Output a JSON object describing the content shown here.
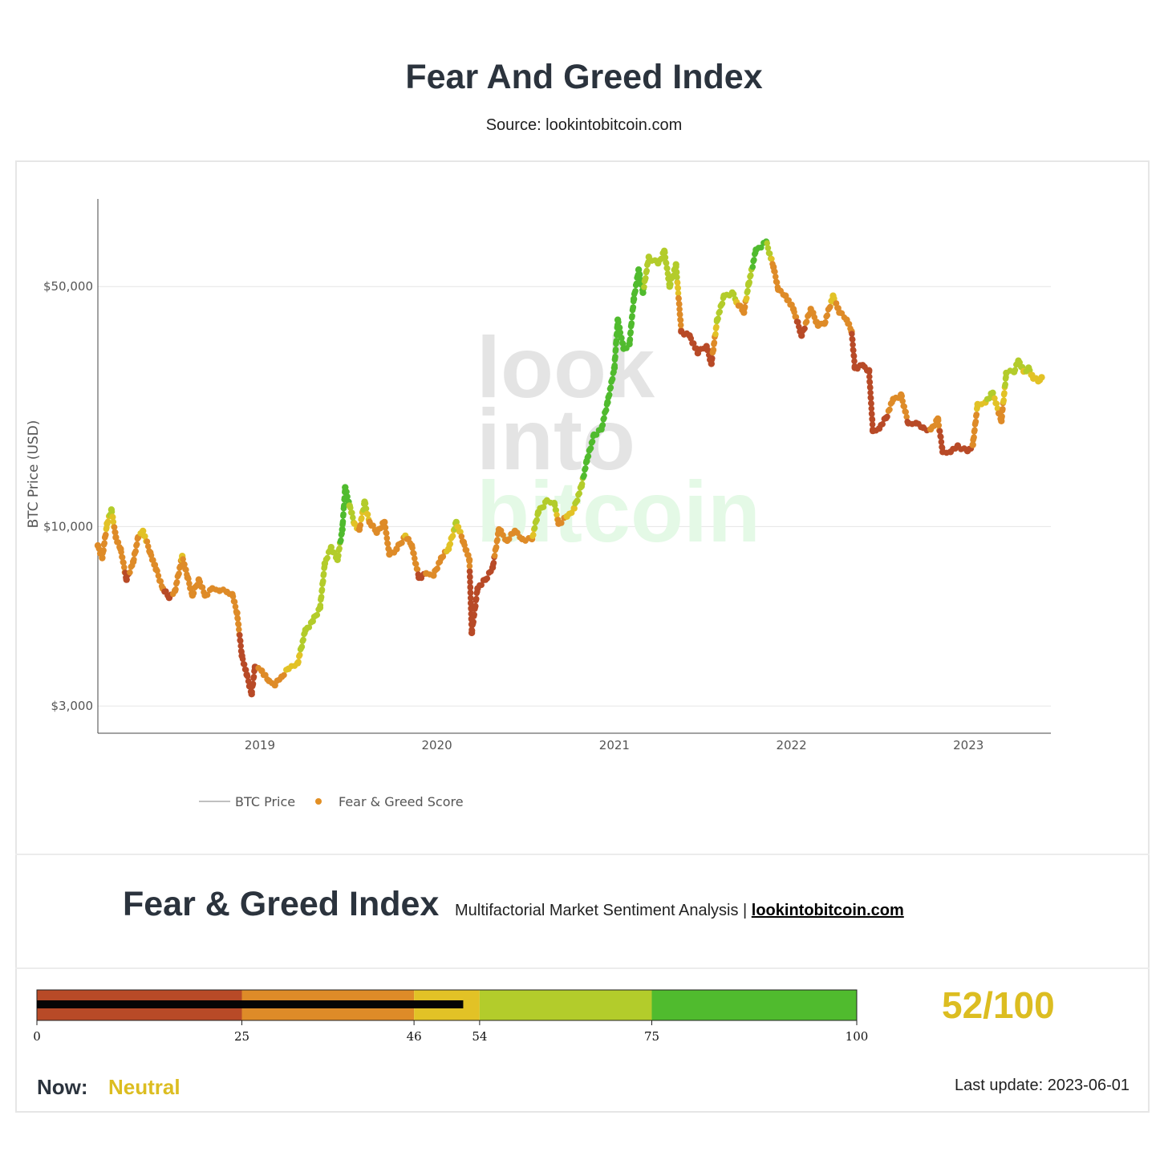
{
  "header": {
    "title": "Fear And Greed Index",
    "subtitle": "Source: lookintobitcoin.com"
  },
  "chart_data": {
    "type": "scatter",
    "ylabel": "BTC Price (USD)",
    "yscale": "log",
    "yticks": [
      {
        "value": 3000,
        "label": "$3,000"
      },
      {
        "value": 10000,
        "label": "$10,000"
      },
      {
        "value": 50000,
        "label": "$50,000"
      }
    ],
    "xticks": [
      "2019",
      "2020",
      "2021",
      "2022",
      "2023"
    ],
    "xlim": [
      "2018-02-01",
      "2023-06-20"
    ],
    "ylim": [
      2500,
      90000
    ],
    "grid": true,
    "legend_position": "bottom-left",
    "watermark": [
      "look",
      "into",
      "bitcoin"
    ],
    "series": [
      {
        "name": "BTC Price",
        "kind": "line",
        "color": "#9a9a9a"
      },
      {
        "name": "Fear & Greed Score",
        "kind": "marker",
        "color": "#e28f24"
      }
    ],
    "points": [
      [
        "2018-02-01",
        8800,
        38
      ],
      [
        "2018-02-10",
        8100,
        30
      ],
      [
        "2018-02-20",
        10200,
        50
      ],
      [
        "2018-03-01",
        11200,
        58
      ],
      [
        "2018-03-10",
        9300,
        40
      ],
      [
        "2018-03-20",
        8600,
        34
      ],
      [
        "2018-04-01",
        7000,
        22
      ],
      [
        "2018-04-15",
        7900,
        30
      ],
      [
        "2018-04-25",
        9300,
        46
      ],
      [
        "2018-05-05",
        9700,
        52
      ],
      [
        "2018-05-20",
        8400,
        40
      ],
      [
        "2018-06-01",
        7500,
        32
      ],
      [
        "2018-06-15",
        6600,
        26
      ],
      [
        "2018-06-28",
        6200,
        22
      ],
      [
        "2018-07-10",
        6500,
        30
      ],
      [
        "2018-07-25",
        8200,
        48
      ],
      [
        "2018-08-05",
        7100,
        34
      ],
      [
        "2018-08-15",
        6300,
        26
      ],
      [
        "2018-08-28",
        7000,
        34
      ],
      [
        "2018-09-10",
        6300,
        30
      ],
      [
        "2018-09-25",
        6600,
        32
      ],
      [
        "2018-10-10",
        6500,
        30
      ],
      [
        "2018-10-25",
        6450,
        32
      ],
      [
        "2018-11-05",
        6350,
        36
      ],
      [
        "2018-11-15",
        5600,
        30
      ],
      [
        "2018-11-25",
        4200,
        20
      ],
      [
        "2018-12-05",
        3700,
        14
      ],
      [
        "2018-12-15",
        3250,
        12
      ],
      [
        "2018-12-22",
        3900,
        24
      ],
      [
        "2019-01-05",
        3800,
        28
      ],
      [
        "2019-01-20",
        3550,
        32
      ],
      [
        "2019-02-01",
        3450,
        34
      ],
      [
        "2019-02-15",
        3650,
        40
      ],
      [
        "2019-03-01",
        3850,
        50
      ],
      [
        "2019-03-20",
        4000,
        52
      ],
      [
        "2019-04-05",
        5000,
        58
      ],
      [
        "2019-04-20",
        5300,
        60
      ],
      [
        "2019-05-05",
        5800,
        66
      ],
      [
        "2019-05-15",
        7800,
        74
      ],
      [
        "2019-05-28",
        8700,
        70
      ],
      [
        "2019-06-10",
        8000,
        68
      ],
      [
        "2019-06-20",
        9800,
        80
      ],
      [
        "2019-06-26",
        13000,
        92
      ],
      [
        "2019-07-05",
        11500,
        72
      ],
      [
        "2019-07-15",
        10200,
        54
      ],
      [
        "2019-07-25",
        9800,
        42
      ],
      [
        "2019-08-05",
        11800,
        60
      ],
      [
        "2019-08-15",
        10300,
        44
      ],
      [
        "2019-08-30",
        9600,
        42
      ],
      [
        "2019-09-15",
        10300,
        42
      ],
      [
        "2019-09-25",
        8300,
        28
      ],
      [
        "2019-10-10",
        8600,
        34
      ],
      [
        "2019-10-28",
        9400,
        48
      ],
      [
        "2019-11-10",
        8800,
        38
      ],
      [
        "2019-11-25",
        7100,
        22
      ],
      [
        "2019-12-10",
        7300,
        26
      ],
      [
        "2019-12-25",
        7200,
        28
      ],
      [
        "2020-01-10",
        8100,
        40
      ],
      [
        "2020-01-25",
        8600,
        50
      ],
      [
        "2020-02-10",
        10300,
        56
      ],
      [
        "2020-02-25",
        9000,
        40
      ],
      [
        "2020-03-08",
        8000,
        28
      ],
      [
        "2020-03-13",
        4900,
        10
      ],
      [
        "2020-03-25",
        6600,
        14
      ],
      [
        "2020-04-10",
        7000,
        16
      ],
      [
        "2020-04-25",
        7600,
        20
      ],
      [
        "2020-05-08",
        9800,
        40
      ],
      [
        "2020-05-25",
        9100,
        44
      ],
      [
        "2020-06-10",
        9700,
        44
      ],
      [
        "2020-06-25",
        9200,
        42
      ],
      [
        "2020-07-15",
        9200,
        44
      ],
      [
        "2020-07-28",
        11000,
        68
      ],
      [
        "2020-08-15",
        11900,
        74
      ],
      [
        "2020-08-30",
        11700,
        70
      ],
      [
        "2020-09-08",
        10200,
        42
      ],
      [
        "2020-09-25",
        10700,
        48
      ],
      [
        "2020-10-10",
        11300,
        54
      ],
      [
        "2020-10-25",
        13100,
        70
      ],
      [
        "2020-11-05",
        15500,
        86
      ],
      [
        "2020-11-20",
        18500,
        90
      ],
      [
        "2020-12-05",
        19200,
        92
      ],
      [
        "2020-12-18",
        23000,
        94
      ],
      [
        "2021-01-01",
        29000,
        94
      ],
      [
        "2021-01-08",
        40000,
        94
      ],
      [
        "2021-01-20",
        33000,
        80
      ],
      [
        "2021-02-01",
        34000,
        82
      ],
      [
        "2021-02-10",
        46000,
        90
      ],
      [
        "2021-02-20",
        56000,
        86
      ],
      [
        "2021-03-01",
        48000,
        76
      ],
      [
        "2021-03-13",
        61000,
        70
      ],
      [
        "2021-04-01",
        58500,
        72
      ],
      [
        "2021-04-14",
        63500,
        74
      ],
      [
        "2021-04-25",
        50000,
        60
      ],
      [
        "2021-05-08",
        58000,
        66
      ],
      [
        "2021-05-19",
        37000,
        24
      ],
      [
        "2021-06-05",
        36000,
        22
      ],
      [
        "2021-06-22",
        32000,
        18
      ],
      [
        "2021-07-10",
        33500,
        24
      ],
      [
        "2021-07-20",
        29800,
        16
      ],
      [
        "2021-08-01",
        40000,
        60
      ],
      [
        "2021-08-15",
        47000,
        72
      ],
      [
        "2021-09-01",
        48000,
        74
      ],
      [
        "2021-09-10",
        45000,
        50
      ],
      [
        "2021-09-25",
        42000,
        32
      ],
      [
        "2021-10-05",
        51000,
        70
      ],
      [
        "2021-10-20",
        64000,
        80
      ],
      [
        "2021-11-10",
        67500,
        78
      ],
      [
        "2021-11-25",
        57000,
        40
      ],
      [
        "2021-12-05",
        49000,
        26
      ],
      [
        "2021-12-20",
        47000,
        28
      ],
      [
        "2022-01-05",
        43000,
        30
      ],
      [
        "2022-01-22",
        36000,
        18
      ],
      [
        "2022-02-10",
        43000,
        36
      ],
      [
        "2022-02-25",
        38500,
        28
      ],
      [
        "2022-03-10",
        39000,
        30
      ],
      [
        "2022-03-28",
        47000,
        52
      ],
      [
        "2022-04-10",
        42000,
        40
      ],
      [
        "2022-04-25",
        40000,
        36
      ],
      [
        "2022-05-05",
        37000,
        26
      ],
      [
        "2022-05-12",
        29000,
        14
      ],
      [
        "2022-05-28",
        29500,
        12
      ],
      [
        "2022-06-10",
        28500,
        14
      ],
      [
        "2022-06-18",
        19000,
        8
      ],
      [
        "2022-07-01",
        19300,
        12
      ],
      [
        "2022-07-15",
        20700,
        22
      ],
      [
        "2022-07-30",
        23500,
        34
      ],
      [
        "2022-08-15",
        24200,
        36
      ],
      [
        "2022-08-30",
        20000,
        22
      ],
      [
        "2022-09-15",
        20000,
        24
      ],
      [
        "2022-09-30",
        19400,
        24
      ],
      [
        "2022-10-15",
        19200,
        26
      ],
      [
        "2022-10-30",
        20600,
        30
      ],
      [
        "2022-11-09",
        16500,
        14
      ],
      [
        "2022-11-25",
        16500,
        16
      ],
      [
        "2022-12-10",
        17200,
        22
      ],
      [
        "2022-12-30",
        16600,
        22
      ],
      [
        "2023-01-10",
        17300,
        26
      ],
      [
        "2023-01-20",
        22700,
        50
      ],
      [
        "2023-02-05",
        23000,
        54
      ],
      [
        "2023-02-20",
        24500,
        58
      ],
      [
        "2023-03-10",
        20300,
        38
      ],
      [
        "2023-03-20",
        28000,
        60
      ],
      [
        "2023-04-05",
        28200,
        60
      ],
      [
        "2023-04-14",
        30400,
        58
      ],
      [
        "2023-04-25",
        28300,
        54
      ],
      [
        "2023-05-05",
        29000,
        56
      ],
      [
        "2023-05-15",
        27000,
        52
      ],
      [
        "2023-05-25",
        26500,
        52
      ],
      [
        "2023-06-01",
        27200,
        52
      ]
    ]
  },
  "section": {
    "title": "Fear & Greed Index",
    "tagline": "Multifactorial Market Sentiment Analysis | ",
    "link": "lookintobitcoin.com"
  },
  "gauge": {
    "min": 0,
    "max": 100,
    "value": 52,
    "bands": [
      {
        "from": 0,
        "to": 25,
        "color": "#b84a27"
      },
      {
        "from": 25,
        "to": 46,
        "color": "#de8b28"
      },
      {
        "from": 46,
        "to": 54,
        "color": "#e2c226"
      },
      {
        "from": 54,
        "to": 75,
        "color": "#b3cc2b"
      },
      {
        "from": 75,
        "to": 100,
        "color": "#50bb2e"
      }
    ],
    "ticks": [
      "0",
      "25",
      "46",
      "54",
      "75",
      "100"
    ],
    "score_text": "52/100"
  },
  "status": {
    "now_label": "Now:",
    "now_value": "Neutral",
    "last_update": "Last update: 2023-06-01"
  }
}
